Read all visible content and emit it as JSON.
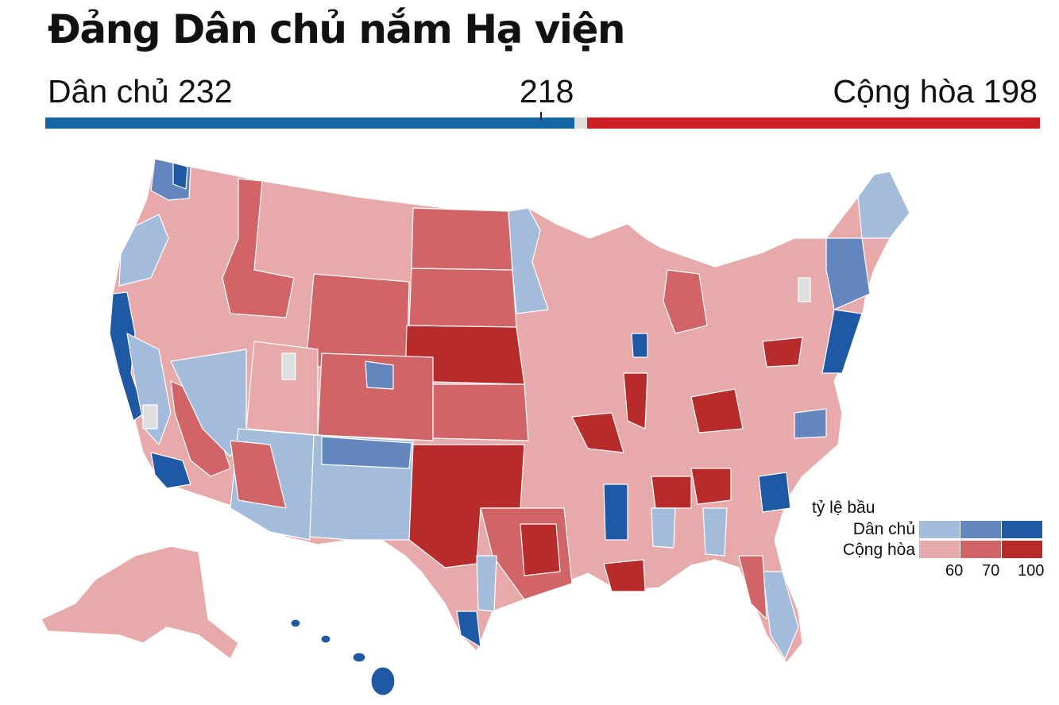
{
  "title": "Đảng Dân chủ nắm Hạ viện",
  "seats": {
    "democrat_label": "Dân chủ 232",
    "republican_label": "Cộng hòa 198",
    "majority_label": "218",
    "democrat": 232,
    "republican": 198,
    "majority": 218,
    "total": 435
  },
  "colors": {
    "democrat_bar": "#1666a6",
    "republican_bar": "#cc2027",
    "undecided": "#dedede",
    "dem_light": "#a4bcdc",
    "dem_mid": "#6386be",
    "dem_dark": "#1f59a5",
    "rep_light": "#e8a9aa",
    "rep_mid": "#d16466",
    "rep_dark": "#b82b2b"
  },
  "legend": {
    "title": "tỷ lệ bầu",
    "democrat_label": "Dân chủ",
    "republican_label": "Cộng hòa",
    "ticks": [
      "60",
      "70",
      "100"
    ]
  }
}
